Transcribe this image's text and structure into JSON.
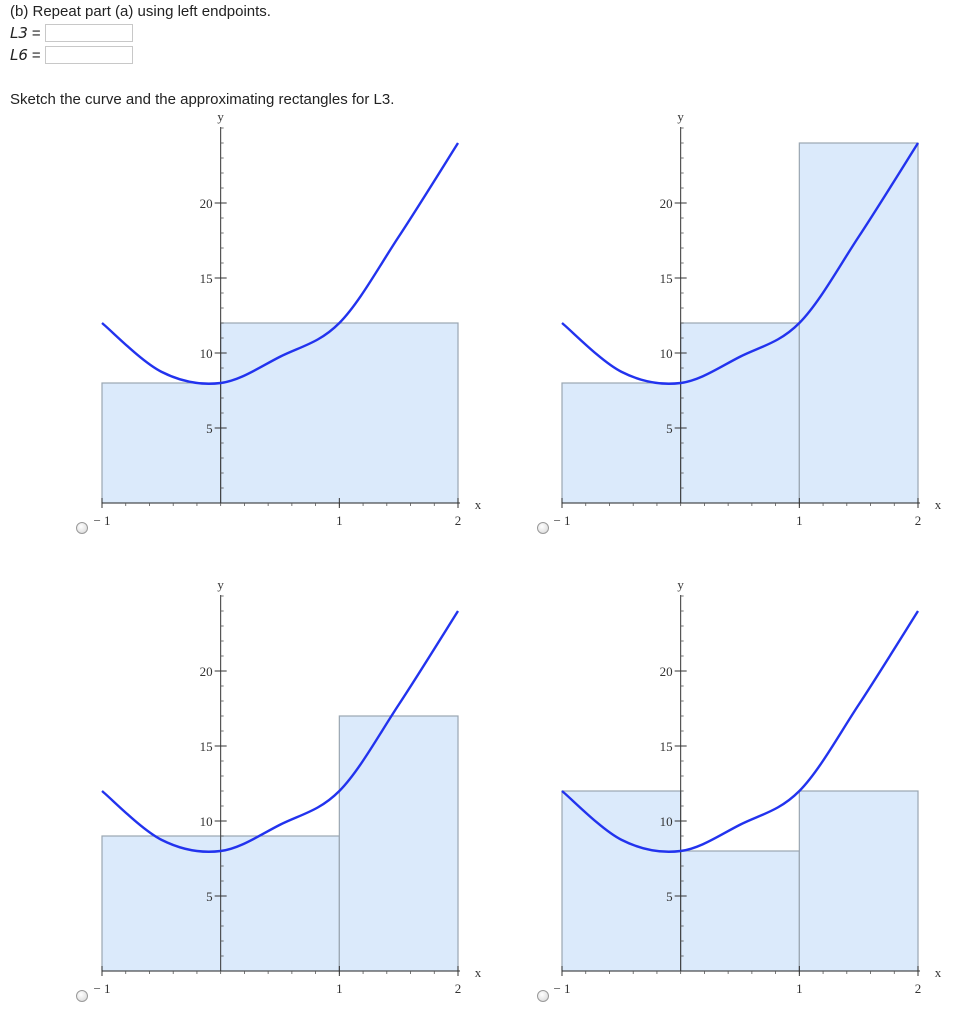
{
  "question": {
    "instruction": "(b) Repeat part (a) using left endpoints.",
    "answers": [
      {
        "label": "L3",
        "eq": "=",
        "value": ""
      },
      {
        "label": "L6",
        "eq": "=",
        "value": ""
      }
    ],
    "sketch_text": "Sketch the curve and the approximating rectangles for L3."
  },
  "chart_data": [
    {
      "type": "area",
      "curve": {
        "x": [
          -1,
          -0.5,
          0,
          0.5,
          1,
          1.5,
          2
        ],
        "y": [
          12,
          8.75,
          8,
          9.75,
          12,
          17.75,
          24
        ]
      },
      "rectangles": [
        {
          "x0": -1,
          "x1": 0,
          "height": 8
        },
        {
          "x0": 0,
          "x1": 2,
          "height": 12
        }
      ],
      "xlabel": "x",
      "ylabel": "y",
      "xticks": [
        "-1",
        "1",
        "2"
      ],
      "yticks": [
        "5",
        "10",
        "15",
        "20"
      ],
      "xlim": [
        -1,
        2
      ],
      "ylim": [
        0,
        24
      ],
      "colors": {
        "curve": "#2233ee",
        "rect_fill": "#dbeafb",
        "rect_stroke": "#9aa6b2"
      }
    },
    {
      "type": "area",
      "curve": {
        "x": [
          -1,
          -0.5,
          0,
          0.5,
          1,
          1.5,
          2
        ],
        "y": [
          12,
          8.75,
          8,
          9.75,
          12,
          17.75,
          24
        ]
      },
      "rectangles": [
        {
          "x0": -1,
          "x1": 0,
          "height": 8
        },
        {
          "x0": 0,
          "x1": 1,
          "height": 12
        },
        {
          "x0": 1,
          "x1": 2,
          "height": 24
        }
      ],
      "xlabel": "x",
      "ylabel": "y",
      "xticks": [
        "-1",
        "1",
        "2"
      ],
      "yticks": [
        "5",
        "10",
        "15",
        "20"
      ],
      "xlim": [
        -1,
        2
      ],
      "ylim": [
        0,
        24
      ],
      "colors": {
        "curve": "#2233ee",
        "rect_fill": "#dbeafb",
        "rect_stroke": "#9aa6b2"
      }
    },
    {
      "type": "area",
      "curve": {
        "x": [
          -1,
          -0.5,
          0,
          0.5,
          1,
          1.5,
          2
        ],
        "y": [
          12,
          8.75,
          8,
          9.75,
          12,
          17.75,
          24
        ]
      },
      "rectangles": [
        {
          "x0": -1,
          "x1": 1,
          "height": 9
        },
        {
          "x0": 1,
          "x1": 2,
          "height": 17
        }
      ],
      "xlabel": "x",
      "ylabel": "y",
      "xticks": [
        "-1",
        "1",
        "2"
      ],
      "yticks": [
        "5",
        "10",
        "15",
        "20"
      ],
      "xlim": [
        -1,
        2
      ],
      "ylim": [
        0,
        24
      ],
      "colors": {
        "curve": "#2233ee",
        "rect_fill": "#dbeafb",
        "rect_stroke": "#9aa6b2"
      }
    },
    {
      "type": "area",
      "curve": {
        "x": [
          -1,
          -0.5,
          0,
          0.5,
          1,
          1.5,
          2
        ],
        "y": [
          12,
          8.75,
          8,
          9.75,
          12,
          17.75,
          24
        ]
      },
      "rectangles": [
        {
          "x0": -1,
          "x1": 0,
          "height": 12
        },
        {
          "x0": 0,
          "x1": 1,
          "height": 8
        },
        {
          "x0": 1,
          "x1": 2,
          "height": 12
        }
      ],
      "xlabel": "x",
      "ylabel": "y",
      "xticks": [
        "-1",
        "1",
        "2"
      ],
      "yticks": [
        "5",
        "10",
        "15",
        "20"
      ],
      "xlim": [
        -1,
        2
      ],
      "ylim": [
        0,
        24
      ],
      "colors": {
        "curve": "#2233ee",
        "rect_fill": "#dbeafb",
        "rect_stroke": "#9aa6b2"
      }
    }
  ]
}
